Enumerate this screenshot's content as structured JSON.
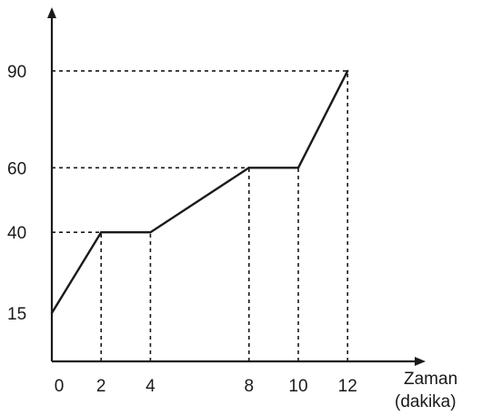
{
  "chart_data": {
    "type": "line",
    "title": "",
    "xlabel": "Zaman",
    "xlabel_unit": "(dakika)",
    "ylabel": "",
    "x": [
      0,
      2,
      4,
      8,
      10,
      12
    ],
    "series": [
      {
        "values": [
          15,
          40,
          40,
          60,
          60,
          90
        ]
      }
    ],
    "x_ticks": [
      0,
      2,
      4,
      8,
      10,
      12
    ],
    "y_ticks": [
      15,
      40,
      60,
      90
    ],
    "xlim": [
      0,
      14.5
    ],
    "ylim": [
      0,
      107
    ],
    "grid": false,
    "guide_lines": "dotted"
  },
  "colors": {
    "line": "#1a1a1a",
    "background": "#ffffff"
  }
}
